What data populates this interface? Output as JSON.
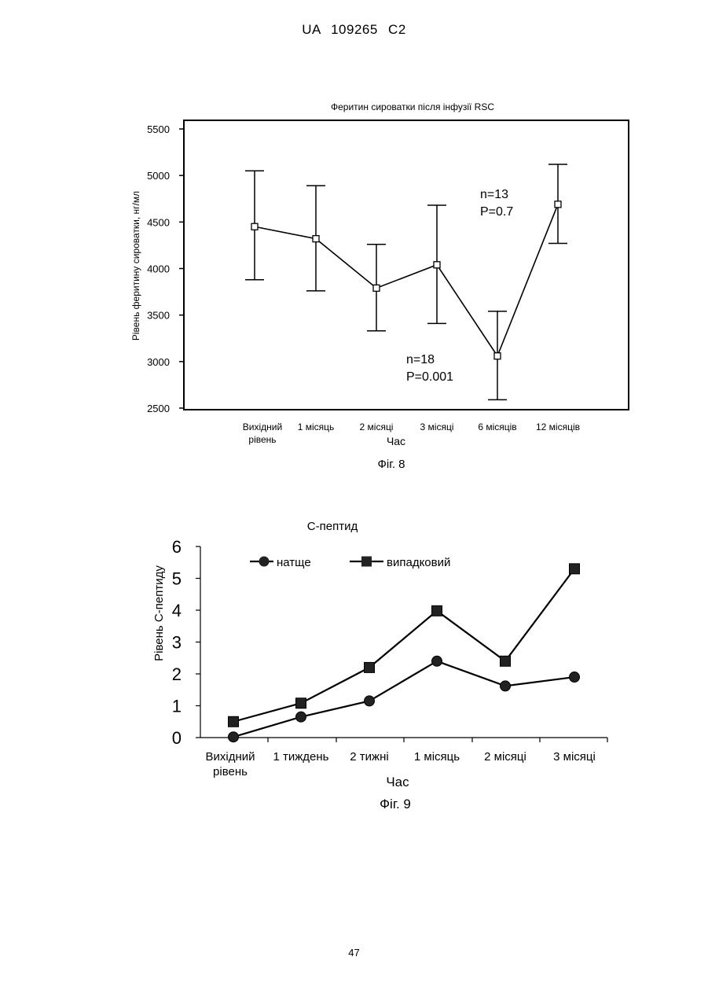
{
  "page": {
    "header": "UA 109265 C2",
    "page_number": "47"
  },
  "chart_data": [
    {
      "type": "line",
      "title": "Феритин сироватки після інфузії RSC",
      "xlabel": "Час",
      "ylabel": "Рівень феритину сироватки, нг/мл",
      "caption": "Фіг. 8",
      "categories": [
        "Вихідний рівень",
        "1 місяць",
        "2 місяці",
        "3 місяці",
        "6 місяців",
        "12 місяців"
      ],
      "series": [
        {
          "values": [
            4450,
            4320,
            3790,
            4040,
            3060,
            4690
          ],
          "error_low": [
            3880,
            3760,
            3330,
            3410,
            2590,
            4270
          ],
          "error_high": [
            5050,
            4890,
            4260,
            4680,
            3540,
            5120
          ]
        }
      ],
      "ylim": [
        2500,
        5500
      ],
      "yticks": [
        "2500",
        "3000",
        "3500",
        "4000",
        "4500",
        "5000",
        "5500"
      ],
      "annotations": [
        {
          "lines": [
            "n=13",
            "P=0.7"
          ],
          "x_category": "3 місяці",
          "y": 4580
        },
        {
          "lines": [
            "n=18",
            "P=0.001"
          ],
          "x_category": "2 місяці",
          "y": 2950
        }
      ],
      "grid": false,
      "marker": "open-square"
    },
    {
      "type": "line",
      "title": "С-пептид",
      "xlabel": "Час",
      "ylabel": "Рівень С-пептиду",
      "caption": "Фіг. 9",
      "categories": [
        "Вихідний рівень",
        "1 тиждень",
        "2 тижні",
        "1 місяць",
        "2 місяці",
        "3 місяці"
      ],
      "series": [
        {
          "name": "натще",
          "marker": "circle",
          "values": [
            0.02,
            0.65,
            1.15,
            2.4,
            1.62,
            1.9
          ]
        },
        {
          "name": "випадковий",
          "marker": "square",
          "values": [
            0.5,
            1.08,
            2.2,
            3.98,
            2.4,
            5.3
          ]
        }
      ],
      "ylim": [
        0,
        6
      ],
      "yticks": [
        "0",
        "1",
        "2",
        "3",
        "4",
        "5",
        "6"
      ],
      "legend": "top-left inside",
      "grid": false
    }
  ]
}
